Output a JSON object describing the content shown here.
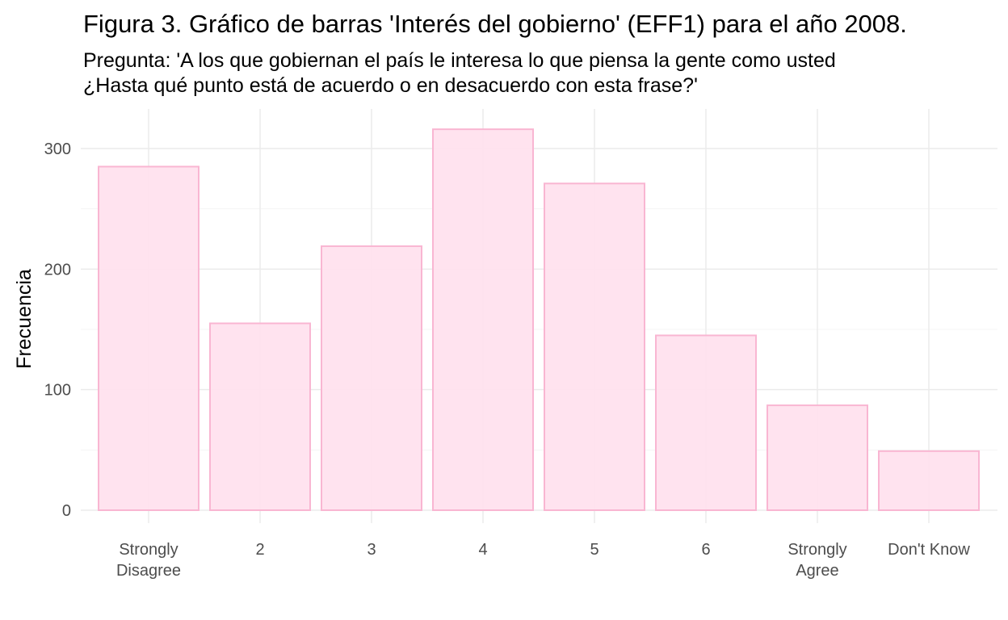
{
  "chart_data": {
    "type": "bar",
    "title": "Figura 3. Gráfico de barras 'Interés del gobierno' (EFF1) para el año 2008.",
    "subtitle_lines": [
      "Pregunta: 'A los que gobiernan el país le interesa lo que piensa la gente como usted",
      "¿Hasta qué punto está de acuerdo o en desacuerdo con esta frase?'"
    ],
    "xlabel": "",
    "ylabel": "Frecuencia",
    "categories": [
      "Strongly Disagree",
      "2",
      "3",
      "4",
      "5",
      "6",
      "Strongly Agree",
      "Don't Know"
    ],
    "category_label_lines": [
      [
        "Strongly",
        "Disagree"
      ],
      [
        "2"
      ],
      [
        "3"
      ],
      [
        "4"
      ],
      [
        "5"
      ],
      [
        "6"
      ],
      [
        "Strongly",
        "Agree"
      ],
      [
        "Don't Know"
      ]
    ],
    "values": [
      285,
      155,
      219,
      316,
      271,
      145,
      87,
      49
    ],
    "ylim": [
      0,
      330
    ],
    "y_ticks": [
      0,
      100,
      200,
      300
    ],
    "y_tick_labels": [
      "0",
      "100",
      "200",
      "300"
    ],
    "grid": true,
    "legend": "none",
    "colors": {
      "bar_fill": "#ffe1ee",
      "bar_stroke": "#f9b6d2",
      "grid_major": "#ebebeb",
      "grid_minor": "#f4f4f4",
      "tick_text": "#4d4d4d"
    }
  }
}
